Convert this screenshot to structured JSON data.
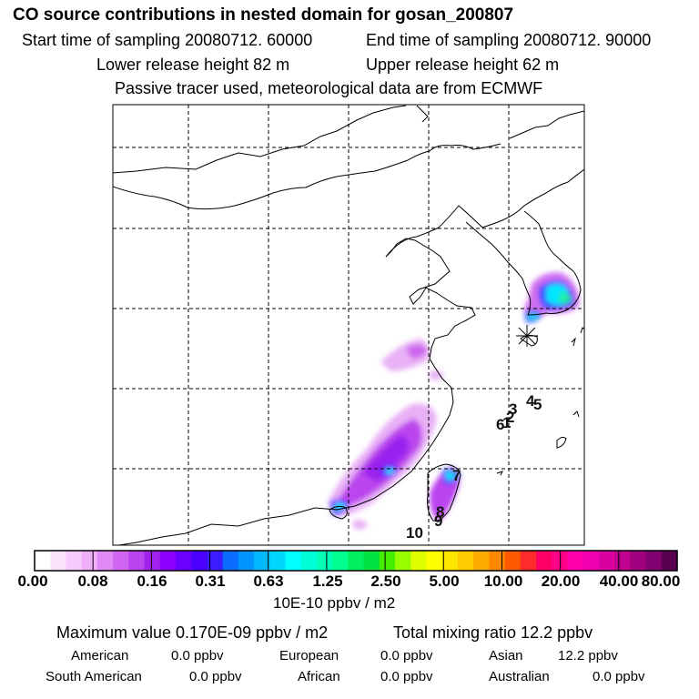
{
  "header": {
    "title": "CO  source contributions in nested domain for gosan_200807",
    "start_sampling": "Start time of sampling 20080712. 60000",
    "end_sampling": "End time of sampling 20080712. 90000",
    "lower_release": "Lower release height   82 m",
    "upper_release": "Upper release height   62 m",
    "tracer_note": "Passive tracer used, meteorological data are from ECMWF"
  },
  "map": {
    "station_labels": [
      "1",
      "2",
      "3",
      "4",
      "5",
      "6",
      "7",
      "8",
      "9",
      "10"
    ],
    "colors": {
      "border": "#000000",
      "grid": "#000000"
    }
  },
  "colorbar": {
    "colors": [
      "#ffffff",
      "#fbe5fd",
      "#f6cafb",
      "#f0aef9",
      "#e08af5",
      "#d066f1",
      "#bb44ee",
      "#a222ee",
      "#8b00ff",
      "#6a00ff",
      "#4b00ff",
      "#3a1cff",
      "#0b6cff",
      "#0094ff",
      "#00b8ff",
      "#00d7ff",
      "#00ffff",
      "#00ffd7",
      "#00ffb4",
      "#00ff8e",
      "#00f060",
      "#00e040",
      "#44ee00",
      "#99ff00",
      "#ddff00",
      "#ffff00",
      "#ffe600",
      "#ffcc00",
      "#ffaa00",
      "#ff8800",
      "#ff5a00",
      "#ff2a2a",
      "#ff0066",
      "#ff0088",
      "#ff00aa",
      "#f000b0",
      "#d8009f",
      "#c00090",
      "#a00080",
      "#800070",
      "#5a0050"
    ],
    "tick_labels": [
      "0.00",
      "0.08",
      "0.16",
      "0.31",
      "0.63",
      "1.25",
      "2.50",
      "5.00",
      "10.00",
      "20.00",
      "40.00",
      "80.00"
    ],
    "units": "10E-10 ppbv / m2"
  },
  "summary": {
    "maximum_value": "Maximum value  0.170E-09 ppbv / m2",
    "total_mixing_ratio": "Total mixing ratio       12.2 ppbv",
    "regions": [
      {
        "name": "American",
        "value": "0.0 ppbv"
      },
      {
        "name": "European",
        "value": "0.0 ppbv"
      },
      {
        "name": "Asian",
        "value": "12.2 ppbv"
      },
      {
        "name": "South American",
        "value": "0.0 ppbv"
      },
      {
        "name": "African",
        "value": "0.0 ppbv"
      },
      {
        "name": "Australian",
        "value": "0.0 ppbv"
      }
    ]
  }
}
